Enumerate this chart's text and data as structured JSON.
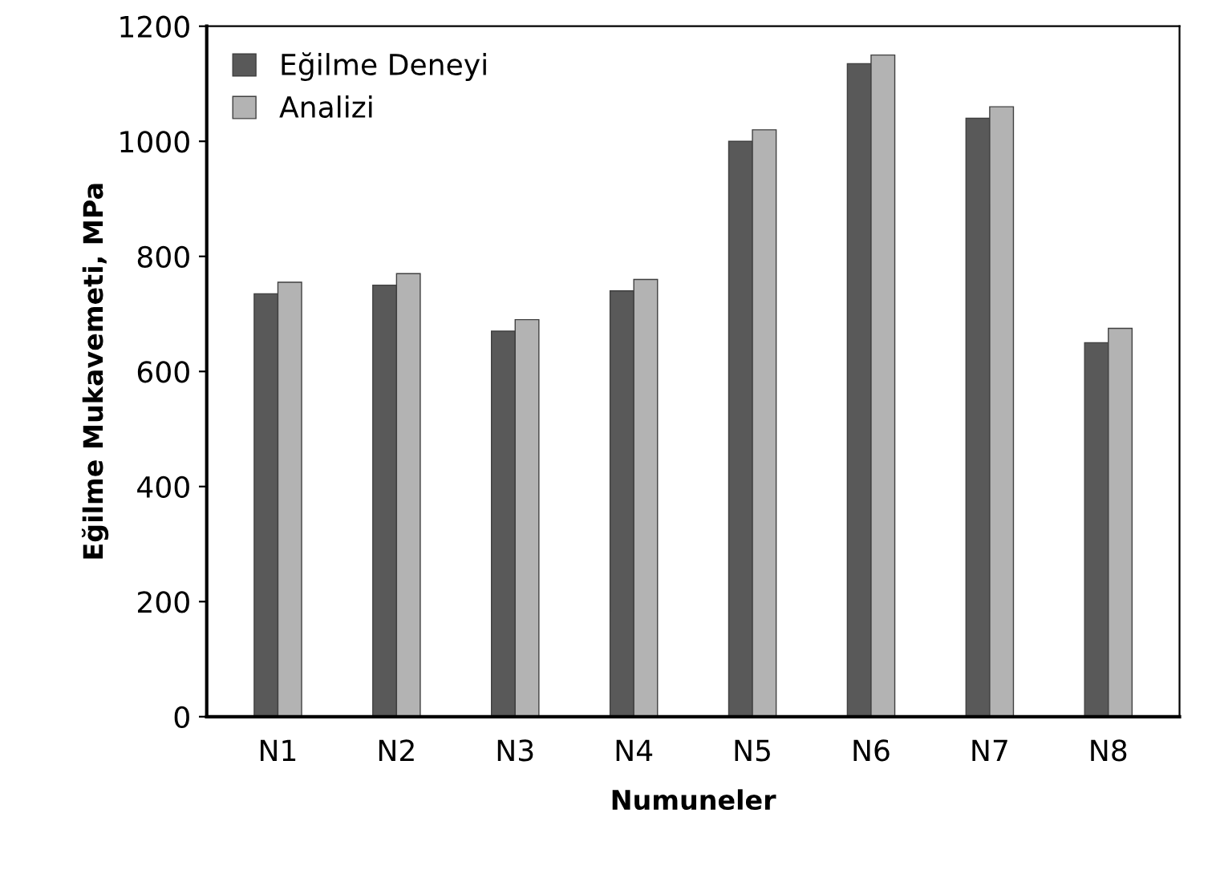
{
  "chart_data": {
    "type": "bar",
    "xlabel": "Numuneler",
    "ylabel": "Eğilme Mukavemeti, MPa",
    "categories": [
      "N1",
      "N2",
      "N3",
      "N4",
      "N5",
      "N6",
      "N7",
      "N8"
    ],
    "series": [
      {
        "name": "Eğilme Deneyi",
        "color": "#595959",
        "values": [
          735,
          750,
          670,
          740,
          1000,
          1135,
          1040,
          650
        ]
      },
      {
        "name": "Analizi",
        "color": "#b3b3b3",
        "values": [
          755,
          770,
          690,
          760,
          1020,
          1150,
          1060,
          675
        ]
      }
    ],
    "ylim": [
      0,
      1200
    ],
    "yticks": [
      0,
      200,
      400,
      600,
      800,
      1000,
      1200
    ],
    "grid": false,
    "legend": "top left"
  }
}
